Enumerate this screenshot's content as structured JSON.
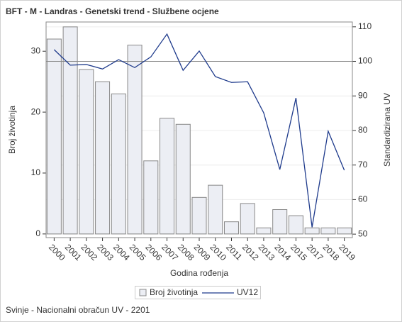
{
  "chart_data": {
    "type": "bar_line",
    "title": "BFT - M - Landras - Genetski trend - Službene ocjene",
    "x_label": "Godina rođenja",
    "y_label": "Broj životinja",
    "y2_label": "Standardizirana UV",
    "footnote": "Svinje - Nacionalni obračun UV - 2201",
    "categories": [
      "2000",
      "2001",
      "2002",
      "2003",
      "2004",
      "2005",
      "2006",
      "2007",
      "2008",
      "2009",
      "2010",
      "2011",
      "2012",
      "2013",
      "2014",
      "2015",
      "2017",
      "2018",
      "2019"
    ],
    "series": [
      {
        "name": "Broj životinja",
        "color": "#eceef4",
        "values": [
          32,
          34,
          27,
          25,
          23,
          31,
          12,
          19,
          18,
          6,
          8,
          2,
          5,
          1,
          4,
          3,
          1,
          1,
          1
        ]
      },
      {
        "name": "UV12",
        "color": "#1f3b8c",
        "axis": "y2",
        "values": [
          103.4,
          98.9,
          99.1,
          97.8,
          100.5,
          98.2,
          101.3,
          107.9,
          97.4,
          103,
          95.6,
          93.9,
          94.1,
          85.1,
          68.7,
          89.4,
          52,
          79.8,
          68.5
        ]
      }
    ],
    "ylim": [
      -0.6,
      34.8
    ],
    "yticks": [
      0,
      10,
      20,
      30
    ],
    "y2lim": [
      49,
      111.4
    ],
    "y2ticks": [
      50,
      60,
      70,
      80,
      90,
      100,
      110
    ],
    "reference_line": 100,
    "grid": true
  }
}
